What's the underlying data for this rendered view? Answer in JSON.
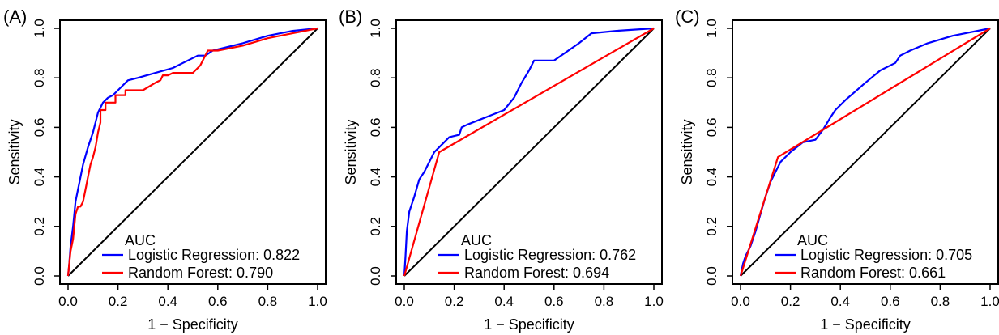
{
  "chart_data": [
    {
      "type": "line",
      "panel_label": "(A)",
      "xlabel": "1 − Specificity",
      "ylabel": "Sensitivity",
      "xlim": [
        0,
        1
      ],
      "ylim": [
        0,
        1
      ],
      "xticks": [
        "0.0",
        "0.2",
        "0.4",
        "0.6",
        "0.8",
        "1.0"
      ],
      "yticks": [
        "0.0",
        "0.2",
        "0.4",
        "0.6",
        "0.8",
        "1.0"
      ],
      "grid": false,
      "legend": {
        "title": "AUC",
        "placement": "bottom-right",
        "entries": [
          "Logistic Regression: 0.822",
          "Random Forest: 0.790"
        ]
      },
      "colors": {
        "Logistic Regression": "#0000ff",
        "Random Forest": "#ff0000",
        "reference": "#000000"
      },
      "series": [
        {
          "name": "Logistic Regression",
          "x": [
            0,
            0.005,
            0.01,
            0.02,
            0.03,
            0.05,
            0.06,
            0.08,
            0.1,
            0.12,
            0.14,
            0.16,
            0.18,
            0.2,
            0.22,
            0.24,
            0.28,
            0.35,
            0.42,
            0.48,
            0.52,
            0.55,
            0.58,
            0.62,
            0.7,
            0.8,
            0.9,
            1.0
          ],
          "y": [
            0,
            0.05,
            0.12,
            0.2,
            0.3,
            0.4,
            0.45,
            0.52,
            0.58,
            0.66,
            0.7,
            0.72,
            0.73,
            0.75,
            0.77,
            0.79,
            0.8,
            0.82,
            0.84,
            0.87,
            0.89,
            0.89,
            0.91,
            0.92,
            0.94,
            0.97,
            0.99,
            1.0
          ]
        },
        {
          "name": "Random Forest",
          "x": [
            0,
            0.005,
            0.01,
            0.02,
            0.025,
            0.03,
            0.04,
            0.05,
            0.06,
            0.07,
            0.08,
            0.09,
            0.1,
            0.11,
            0.12,
            0.13,
            0.13,
            0.15,
            0.15,
            0.19,
            0.19,
            0.23,
            0.23,
            0.27,
            0.3,
            0.35,
            0.37,
            0.38,
            0.4,
            0.42,
            0.45,
            0.5,
            0.53,
            0.56,
            0.6,
            0.7,
            0.8,
            0.9,
            1.0
          ],
          "y": [
            0,
            0.05,
            0.1,
            0.15,
            0.2,
            0.25,
            0.28,
            0.28,
            0.3,
            0.35,
            0.4,
            0.45,
            0.48,
            0.52,
            0.58,
            0.62,
            0.67,
            0.67,
            0.7,
            0.7,
            0.73,
            0.73,
            0.75,
            0.75,
            0.75,
            0.78,
            0.79,
            0.81,
            0.81,
            0.82,
            0.82,
            0.82,
            0.85,
            0.91,
            0.91,
            0.93,
            0.96,
            0.98,
            1.0
          ]
        }
      ]
    },
    {
      "type": "line",
      "panel_label": "(B)",
      "xlabel": "1 − Specificity",
      "ylabel": "Sensitivity",
      "xlim": [
        0,
        1
      ],
      "ylim": [
        0,
        1
      ],
      "xticks": [
        "0.0",
        "0.2",
        "0.4",
        "0.6",
        "0.8",
        "1.0"
      ],
      "yticks": [
        "0.0",
        "0.2",
        "0.4",
        "0.6",
        "0.8",
        "1.0"
      ],
      "grid": false,
      "legend": {
        "title": "AUC",
        "placement": "bottom-right",
        "entries": [
          "Logistic Regression: 0.762",
          "Random Forest: 0.694"
        ]
      },
      "colors": {
        "Logistic Regression": "#0000ff",
        "Random Forest": "#ff0000",
        "reference": "#000000"
      },
      "series": [
        {
          "name": "Logistic Regression",
          "x": [
            0,
            0.005,
            0.01,
            0.02,
            0.04,
            0.06,
            0.08,
            0.1,
            0.12,
            0.15,
            0.18,
            0.22,
            0.23,
            0.25,
            0.3,
            0.35,
            0.4,
            0.44,
            0.47,
            0.5,
            0.52,
            0.55,
            0.6,
            0.7,
            0.75,
            0.85,
            1.0
          ],
          "y": [
            0,
            0.08,
            0.18,
            0.26,
            0.32,
            0.39,
            0.42,
            0.46,
            0.5,
            0.53,
            0.56,
            0.57,
            0.6,
            0.61,
            0.63,
            0.65,
            0.67,
            0.72,
            0.78,
            0.83,
            0.87,
            0.87,
            0.87,
            0.94,
            0.98,
            0.99,
            1.0
          ]
        },
        {
          "name": "Random Forest",
          "x": [
            0,
            0.14,
            1.0
          ],
          "y": [
            0,
            0.5,
            1.0
          ]
        }
      ]
    },
    {
      "type": "line",
      "panel_label": "(C)",
      "xlabel": "1 − Specificity",
      "ylabel": "Sensitivity",
      "xlim": [
        0,
        1
      ],
      "ylim": [
        0,
        1
      ],
      "xticks": [
        "0.0",
        "0.2",
        "0.4",
        "0.6",
        "0.8",
        "1.0"
      ],
      "yticks": [
        "0.0",
        "0.2",
        "0.4",
        "0.6",
        "0.8",
        "1.0"
      ],
      "grid": false,
      "legend": {
        "title": "AUC",
        "placement": "bottom-right",
        "entries": [
          "Logistic Regression: 0.705",
          "Random Forest: 0.661"
        ]
      },
      "colors": {
        "Logistic Regression": "#0000ff",
        "Random Forest": "#ff0000",
        "reference": "#000000"
      },
      "series": [
        {
          "name": "Logistic Regression",
          "x": [
            0,
            0.01,
            0.02,
            0.04,
            0.06,
            0.08,
            0.1,
            0.12,
            0.14,
            0.16,
            0.18,
            0.2,
            0.25,
            0.3,
            0.33,
            0.36,
            0.38,
            0.42,
            0.5,
            0.56,
            0.62,
            0.64,
            0.68,
            0.75,
            0.85,
            1.0
          ],
          "y": [
            0,
            0.05,
            0.08,
            0.12,
            0.18,
            0.25,
            0.32,
            0.38,
            0.42,
            0.46,
            0.48,
            0.5,
            0.54,
            0.55,
            0.59,
            0.64,
            0.67,
            0.71,
            0.78,
            0.83,
            0.86,
            0.89,
            0.91,
            0.94,
            0.97,
            1.0
          ]
        },
        {
          "name": "Random Forest",
          "x": [
            0,
            0.15,
            1.0
          ],
          "y": [
            0,
            0.48,
            1.0
          ]
        }
      ]
    }
  ]
}
